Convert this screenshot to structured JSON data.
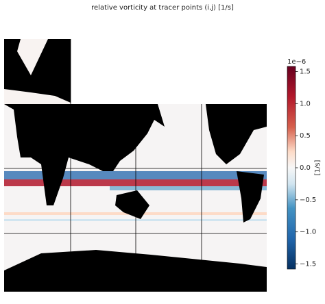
{
  "chart_data": {
    "type": "heatmap",
    "title": "relative vorticity at tracer points (i,j) [1/s]",
    "colorbar": {
      "label": "[1/s]",
      "offset_label": "1e−6",
      "colormap": "RdBu_r",
      "ylim": [
        -1.58,
        1.58
      ],
      "yticks": [
        {
          "value": -1.5,
          "label": "−1.5"
        },
        {
          "value": -1.0,
          "label": "−1.0"
        },
        {
          "value": -0.5,
          "label": "−0.5"
        },
        {
          "value": 0,
          "label": "0.0"
        },
        0.5,
        {
          "value": 1.0,
          "label": "1.0"
        },
        1.5
      ]
    }
  }
}
